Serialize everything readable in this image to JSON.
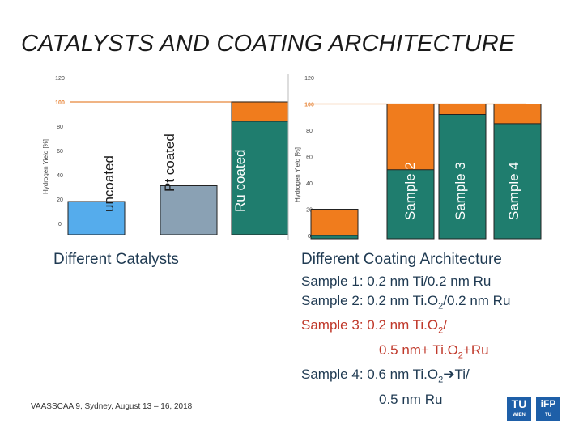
{
  "title": "CATALYSTS AND COATING ARCHITECTURE",
  "colors": {
    "orange": "#f07c1d",
    "blue": "#55acec",
    "steel": "#8aa1b4",
    "teal": "#1f7d6e",
    "limit_line": "#e8863a"
  },
  "chart_data": [
    {
      "type": "bar",
      "title": "",
      "caption": "Different Catalysts",
      "ylabel": "Hydrogen Yield [%]",
      "ylim": [
        0,
        120
      ],
      "y_ticks": [
        "0",
        "20",
        "40",
        "60",
        "80",
        "100",
        "120"
      ],
      "reference_line": {
        "value": 100,
        "label": "100"
      },
      "categories": [
        "uncoated",
        "Pt coated",
        "Ru coated"
      ],
      "values": [
        18,
        31,
        100
      ],
      "bar_colors": [
        "#55acec",
        "#8aa1b4",
        "#1f7d6e"
      ],
      "top_colors": [
        "#55acec",
        "#8aa1b4",
        "#f07c1d"
      ],
      "top_heights": [
        0,
        0,
        16
      ]
    },
    {
      "type": "bar",
      "title": "",
      "caption": "Different Coating Architecture",
      "ylabel": "Hydrogen Yield [%]",
      "ylim": [
        0,
        120
      ],
      "y_ticks": [
        "0",
        "20",
        "40",
        "60",
        "80",
        "100",
        "120"
      ],
      "reference_line": {
        "value": 100,
        "label": "100"
      },
      "categories": [
        "Sample 1",
        "Sample 2",
        "Sample 3",
        "Sample 4"
      ],
      "values": [
        20,
        100,
        100,
        100
      ],
      "bar_colors": [
        "#1f7d6e",
        "#1f7d6e",
        "#1f7d6e",
        "#1f7d6e"
      ],
      "top_colors": [
        "#f07c1d",
        "#f07c1d",
        "#f07c1d",
        "#f07c1d"
      ],
      "top_heights": [
        20,
        50,
        8,
        15
      ]
    }
  ],
  "samples": [
    {
      "prefix": "Sample 1: 0.2 nm Ti/0.2 nm Ru"
    },
    {
      "prefix": "Sample 2: 0.2 nm Ti.O",
      "sub": "2",
      "suffix": "/0.2 nm Ru"
    },
    {
      "prefix": "Sample 3: 0.2 nm Ti.O",
      "sub": "2",
      "suffix": "/"
    },
    {
      "prefix": "0.5 nm+ Ti.O",
      "sub": "2",
      "suffix": "+Ru"
    },
    {
      "prefix": "Sample 4: 0.6 nm Ti.O",
      "sub": "2",
      "suffix": "➔Ti/"
    },
    {
      "prefix": "0.5 nm Ru"
    }
  ],
  "footer": "VAASSCAA 9, Sydney, August 13 – 16, 2018",
  "logos": {
    "tu": "TU",
    "tu_sub": "WIEN",
    "ifp": "iFP",
    "ifp_sub": "TU"
  }
}
